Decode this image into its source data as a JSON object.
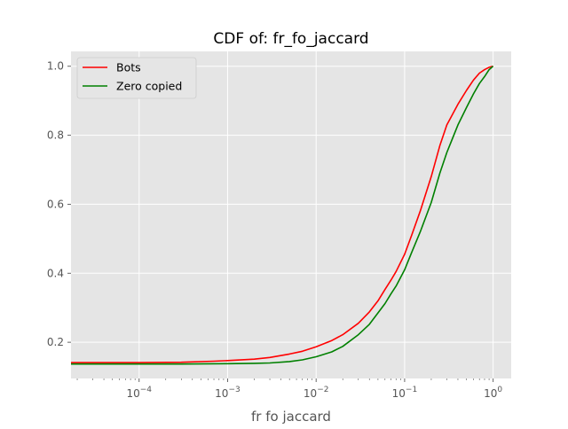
{
  "chart_data": {
    "type": "line",
    "title": "CDF of: fr_fo_jaccard",
    "xlabel": "fr fo jaccard",
    "ylabel": "",
    "xscale": "log",
    "xlim": [
      1.7e-05,
      1.6
    ],
    "ylim": [
      0.095,
      1.043
    ],
    "grid": true,
    "legend_placement": "upper-left",
    "xticks": [
      {
        "value": 0.0001,
        "base": "10",
        "exp": "−4"
      },
      {
        "value": 0.001,
        "base": "10",
        "exp": "−3"
      },
      {
        "value": 0.01,
        "base": "10",
        "exp": "−2"
      },
      {
        "value": 0.1,
        "base": "10",
        "exp": "−1"
      },
      {
        "value": 1,
        "base": "10",
        "exp": "0"
      }
    ],
    "yticks": [
      {
        "value": 0.2,
        "label": "0.2"
      },
      {
        "value": 0.4,
        "label": "0.4"
      },
      {
        "value": 0.6,
        "label": "0.6"
      },
      {
        "value": 0.8,
        "label": "0.8"
      },
      {
        "value": 1.0,
        "label": "1.0"
      }
    ],
    "series": [
      {
        "name": "Bots",
        "color": "#ff0000",
        "x": [
          1.7e-05,
          0.0001,
          0.0003,
          0.0007,
          0.001,
          0.002,
          0.003,
          0.005,
          0.007,
          0.01,
          0.015,
          0.02,
          0.03,
          0.04,
          0.05,
          0.06,
          0.07,
          0.08,
          0.1,
          0.12,
          0.15,
          0.2,
          0.25,
          0.3,
          0.4,
          0.5,
          0.6,
          0.7,
          0.8,
          0.9,
          1.0
        ],
        "y": [
          0.141,
          0.141,
          0.142,
          0.145,
          0.147,
          0.151,
          0.156,
          0.166,
          0.174,
          0.187,
          0.205,
          0.222,
          0.255,
          0.288,
          0.32,
          0.353,
          0.38,
          0.405,
          0.455,
          0.51,
          0.58,
          0.68,
          0.77,
          0.83,
          0.89,
          0.93,
          0.96,
          0.98,
          0.99,
          0.997,
          1.0
        ]
      },
      {
        "name": "Zero copied",
        "color": "#008000",
        "x": [
          1.7e-05,
          0.0001,
          0.0003,
          0.001,
          0.002,
          0.003,
          0.005,
          0.007,
          0.01,
          0.015,
          0.02,
          0.03,
          0.04,
          0.05,
          0.06,
          0.07,
          0.08,
          0.1,
          0.12,
          0.15,
          0.2,
          0.25,
          0.3,
          0.4,
          0.5,
          0.6,
          0.7,
          0.8,
          0.9,
          1.0
        ],
        "y": [
          0.137,
          0.137,
          0.137,
          0.138,
          0.139,
          0.14,
          0.144,
          0.149,
          0.158,
          0.172,
          0.188,
          0.222,
          0.252,
          0.285,
          0.312,
          0.34,
          0.363,
          0.41,
          0.46,
          0.52,
          0.605,
          0.69,
          0.75,
          0.83,
          0.88,
          0.92,
          0.95,
          0.97,
          0.99,
          1.0
        ]
      }
    ]
  }
}
